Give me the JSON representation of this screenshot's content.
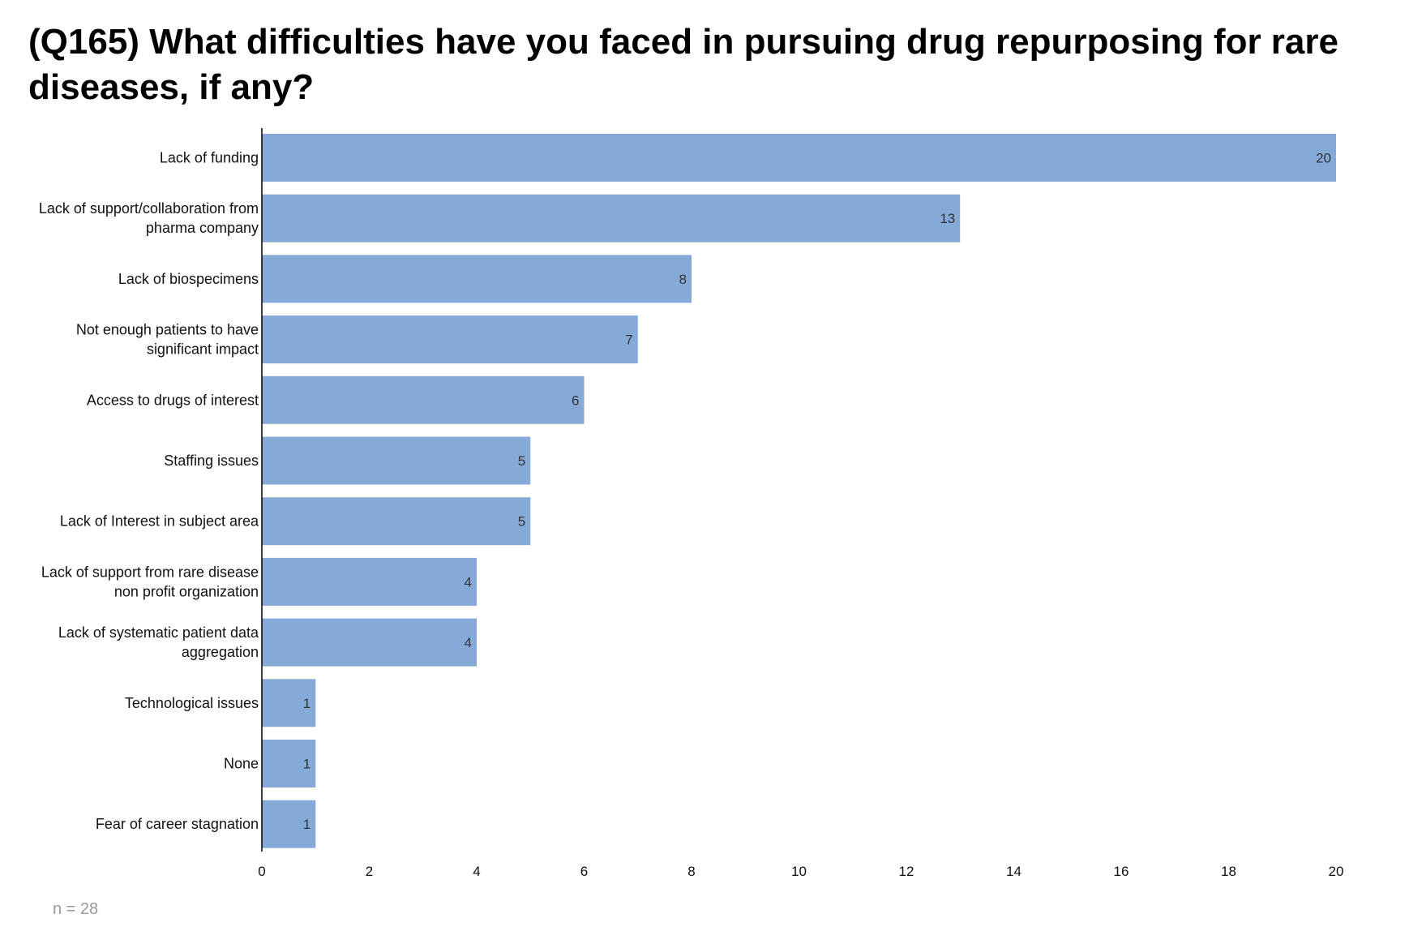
{
  "title": "(Q165) What difficulties have you faced in pursuing drug repurposing for rare diseases, if any?",
  "footnote": "n = 28",
  "colors": {
    "bar": "#86aad8",
    "axis": "#000000"
  },
  "chart_data": {
    "type": "bar",
    "orientation": "horizontal",
    "title": "(Q165) What difficulties have you faced in pursuing drug repurposing for rare diseases, if any?",
    "categories": [
      [
        "Lack of funding"
      ],
      [
        "Lack of support/collaboration from",
        "pharma company"
      ],
      [
        "Lack of biospecimens"
      ],
      [
        "Not enough patients to have",
        "significant impact"
      ],
      [
        "Access to drugs of interest"
      ],
      [
        "Staffing issues"
      ],
      [
        "Lack of Interest in subject area"
      ],
      [
        "Lack of support from rare disease",
        "non profit organization"
      ],
      [
        "Lack of systematic patient data",
        "aggregation"
      ],
      [
        "Technological issues"
      ],
      [
        "None"
      ],
      [
        "Fear of career stagnation"
      ]
    ],
    "values": [
      20,
      13,
      8,
      7,
      6,
      5,
      5,
      4,
      4,
      1,
      1,
      1
    ],
    "xlim": [
      0,
      20
    ],
    "xticks": [
      0,
      2,
      4,
      6,
      8,
      10,
      12,
      14,
      16,
      18,
      20
    ],
    "data_labels": true,
    "grid": false
  }
}
